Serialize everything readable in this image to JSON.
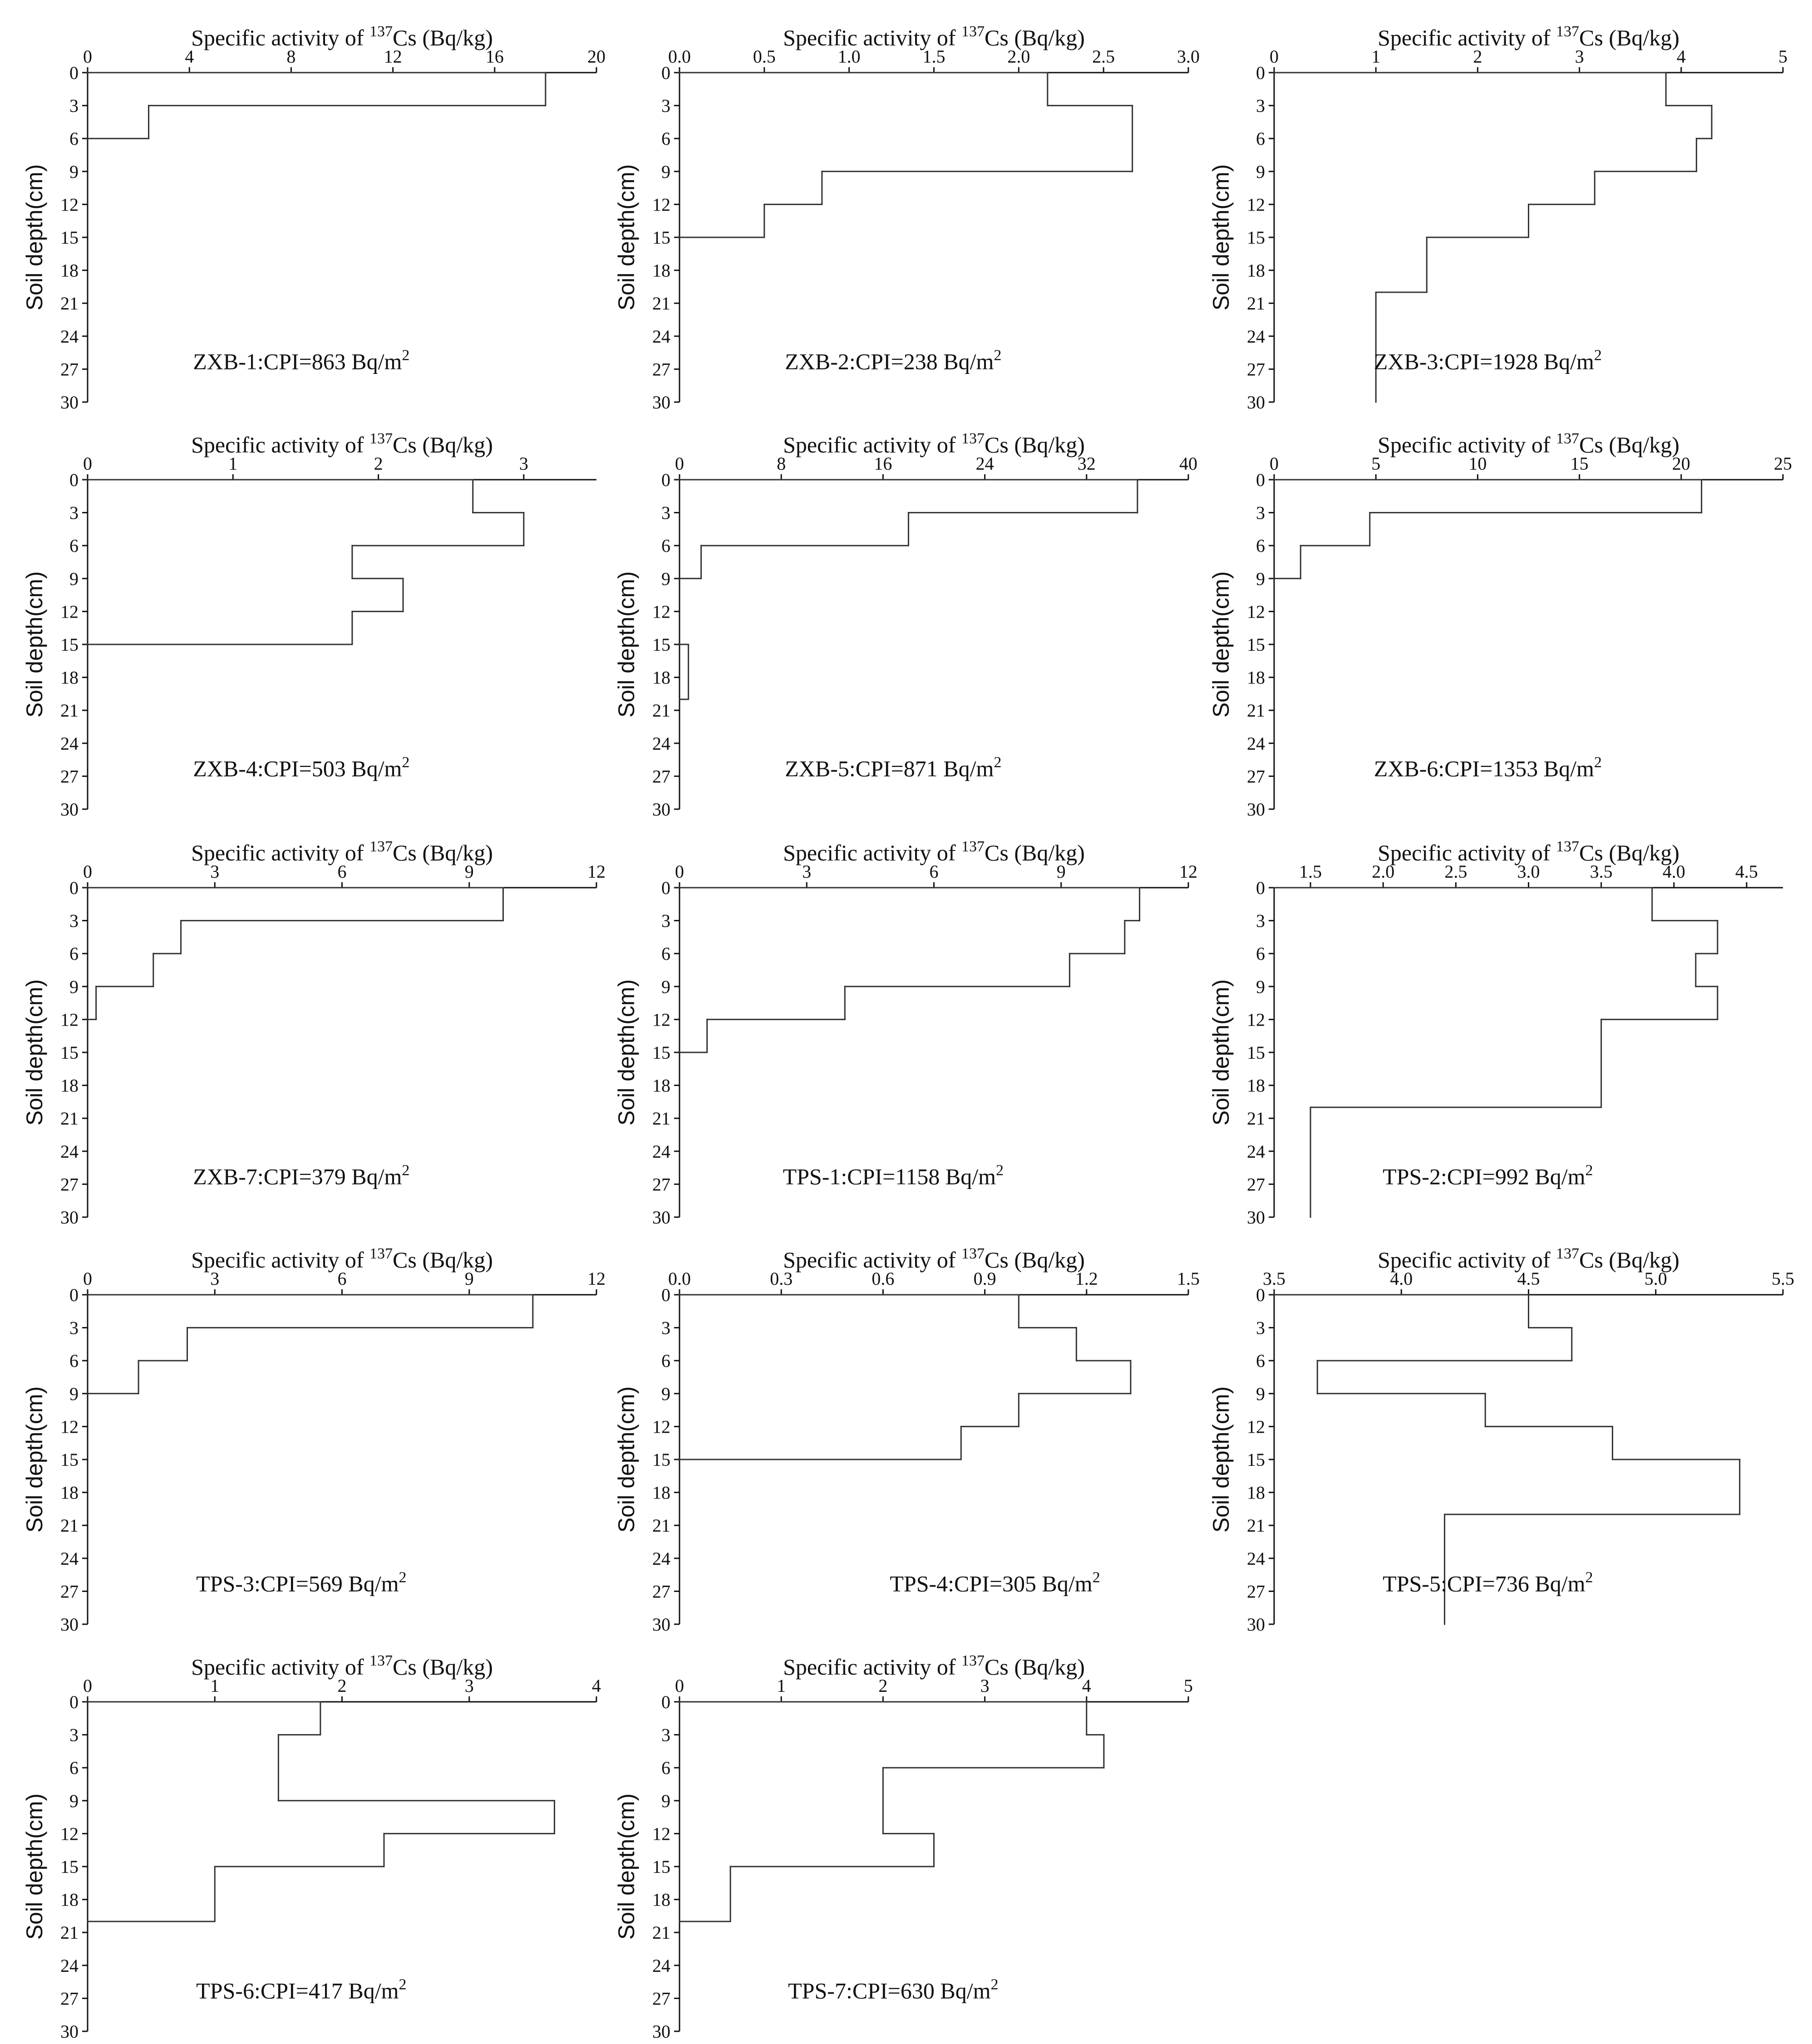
{
  "figure": {
    "x_title_prefix": "Specific activity of ",
    "x_title_isotope_mass": "137",
    "x_title_suffix": "Cs (Bq/kg)",
    "y_title": "Soil depth(cm)",
    "line_color": "#333333"
  },
  "chart_data": [
    {
      "type": "line",
      "profile_id": "ZXB-1",
      "label_prefix": "ZXB-1:CPI=863 Bq/m",
      "label_exponent": "2",
      "xlim": [
        0,
        20
      ],
      "xticks": [
        "0",
        "4",
        "8",
        "12",
        "16",
        "20"
      ],
      "ylim": [
        0,
        30
      ],
      "yticks": [
        "0",
        "3",
        "6",
        "9",
        "12",
        "15",
        "18",
        "21",
        "24",
        "27",
        "30"
      ],
      "depth_intervals": [
        [
          0,
          3
        ],
        [
          3,
          6
        ]
      ],
      "values": [
        18,
        2.4
      ]
    },
    {
      "type": "line",
      "profile_id": "ZXB-2",
      "label_prefix": "ZXB-2:CPI=238 Bq/m",
      "label_exponent": "2",
      "xlim": [
        0,
        3
      ],
      "xticks": [
        "0.0",
        "0.5",
        "1.0",
        "1.5",
        "2.0",
        "2.5",
        "3.0"
      ],
      "ylim": [
        0,
        30
      ],
      "yticks": [
        "0",
        "3",
        "6",
        "9",
        "12",
        "15",
        "18",
        "21",
        "24",
        "27",
        "30"
      ],
      "depth_intervals": [
        [
          0,
          3
        ],
        [
          3,
          9
        ],
        [
          9,
          12
        ],
        [
          12,
          15
        ]
      ],
      "values": [
        2.17,
        2.67,
        0.84,
        0.5
      ]
    },
    {
      "type": "line",
      "profile_id": "ZXB-3",
      "label_prefix": "ZXB-3:CPI=1928 Bq/m",
      "label_exponent": "2",
      "xlim": [
        0,
        5
      ],
      "xticks": [
        "0",
        "1",
        "2",
        "3",
        "4",
        "5"
      ],
      "ylim": [
        0,
        30
      ],
      "yticks": [
        "0",
        "3",
        "6",
        "9",
        "12",
        "15",
        "18",
        "21",
        "24",
        "27",
        "30"
      ],
      "depth_intervals": [
        [
          0,
          3
        ],
        [
          3,
          6
        ],
        [
          6,
          9
        ],
        [
          9,
          12
        ],
        [
          12,
          15
        ],
        [
          15,
          20
        ],
        [
          20,
          30
        ]
      ],
      "values": [
        3.85,
        4.3,
        4.15,
        3.15,
        2.5,
        1.5,
        1.0
      ]
    },
    {
      "type": "line",
      "profile_id": "ZXB-4",
      "label_prefix": "ZXB-4:CPI=503 Bq/m",
      "label_exponent": "2",
      "xlim": [
        0,
        3.5
      ],
      "xticks": [
        "0",
        "1",
        "2",
        "3"
      ],
      "ylim": [
        0,
        30
      ],
      "yticks": [
        "0",
        "3",
        "6",
        "9",
        "12",
        "15",
        "18",
        "21",
        "24",
        "27",
        "30"
      ],
      "depth_intervals": [
        [
          0,
          3
        ],
        [
          3,
          6
        ],
        [
          6,
          9
        ],
        [
          9,
          12
        ],
        [
          12,
          15
        ]
      ],
      "values": [
        2.65,
        3.0,
        1.82,
        2.17,
        1.82
      ]
    },
    {
      "type": "line",
      "profile_id": "ZXB-5",
      "label_prefix": "ZXB-5:CPI=871 Bq/m",
      "label_exponent": "2",
      "xlim": [
        0,
        40
      ],
      "xticks": [
        "0",
        "8",
        "16",
        "24",
        "32",
        "40"
      ],
      "ylim": [
        0,
        30
      ],
      "yticks": [
        "0",
        "3",
        "6",
        "9",
        "12",
        "15",
        "18",
        "21",
        "24",
        "27",
        "30"
      ],
      "depth_intervals": [
        [
          0,
          3
        ],
        [
          3,
          6
        ],
        [
          6,
          9
        ],
        [
          15,
          20
        ]
      ],
      "values": [
        36,
        18,
        1.7,
        0.7
      ]
    },
    {
      "type": "line",
      "profile_id": "ZXB-6",
      "label_prefix": "ZXB-6:CPI=1353 Bq/m",
      "label_exponent": "2",
      "xlim": [
        0,
        25
      ],
      "xticks": [
        "0",
        "5",
        "10",
        "15",
        "20",
        "25"
      ],
      "ylim": [
        0,
        30
      ],
      "yticks": [
        "0",
        "3",
        "6",
        "9",
        "12",
        "15",
        "18",
        "21",
        "24",
        "27",
        "30"
      ],
      "depth_intervals": [
        [
          0,
          3
        ],
        [
          3,
          6
        ],
        [
          6,
          9
        ]
      ],
      "values": [
        21,
        4.7,
        1.3
      ]
    },
    {
      "type": "line",
      "profile_id": "ZXB-7",
      "label_prefix": "ZXB-7:CPI=379 Bq/m",
      "label_exponent": "2",
      "xlim": [
        0,
        12
      ],
      "xticks": [
        "0",
        "3",
        "6",
        "9",
        "12"
      ],
      "ylim": [
        0,
        30
      ],
      "yticks": [
        "0",
        "3",
        "6",
        "9",
        "12",
        "15",
        "18",
        "21",
        "24",
        "27",
        "30"
      ],
      "depth_intervals": [
        [
          0,
          3
        ],
        [
          3,
          6
        ],
        [
          6,
          9
        ],
        [
          9,
          12
        ]
      ],
      "values": [
        9.8,
        2.2,
        1.55,
        0.2
      ]
    },
    {
      "type": "line",
      "profile_id": "TPS-1",
      "label_prefix": "TPS-1:CPI=1158 Bq/m",
      "label_exponent": "2",
      "xlim": [
        0,
        12
      ],
      "xticks": [
        "0",
        "3",
        "6",
        "9",
        "12"
      ],
      "ylim": [
        0,
        30
      ],
      "yticks": [
        "0",
        "3",
        "6",
        "9",
        "12",
        "15",
        "18",
        "21",
        "24",
        "27",
        "30"
      ],
      "depth_intervals": [
        [
          0,
          3
        ],
        [
          3,
          6
        ],
        [
          6,
          9
        ],
        [
          9,
          12
        ],
        [
          12,
          15
        ]
      ],
      "values": [
        10.85,
        10.5,
        9.2,
        3.9,
        0.65
      ]
    },
    {
      "type": "line",
      "profile_id": "TPS-2",
      "label_prefix": "TPS-2:CPI=992 Bq/m",
      "label_exponent": "2",
      "xlim": [
        1.25,
        4.75
      ],
      "xticks": [
        "1.5",
        "2.0",
        "2.5",
        "3.0",
        "3.5",
        "4.0",
        "4.5"
      ],
      "ylim": [
        0,
        30
      ],
      "yticks": [
        "0",
        "3",
        "6",
        "9",
        "12",
        "15",
        "18",
        "21",
        "24",
        "27",
        "30"
      ],
      "depth_intervals": [
        [
          0,
          3
        ],
        [
          3,
          6
        ],
        [
          6,
          9
        ],
        [
          9,
          12
        ],
        [
          12,
          20
        ],
        [
          20,
          30
        ]
      ],
      "values": [
        3.85,
        4.3,
        4.15,
        4.3,
        3.5,
        1.5
      ]
    },
    {
      "type": "line",
      "profile_id": "TPS-3",
      "label_prefix": "TPS-3:CPI=569  Bq/m",
      "label_exponent": "2",
      "xlim": [
        0,
        12
      ],
      "xticks": [
        "0",
        "3",
        "6",
        "9",
        "12"
      ],
      "ylim": [
        0,
        30
      ],
      "yticks": [
        "0",
        "3",
        "6",
        "9",
        "12",
        "15",
        "18",
        "21",
        "24",
        "27",
        "30"
      ],
      "depth_intervals": [
        [
          0,
          3
        ],
        [
          3,
          6
        ],
        [
          6,
          9
        ]
      ],
      "values": [
        10.5,
        2.35,
        1.2
      ]
    },
    {
      "type": "line",
      "profile_id": "TPS-4",
      "label_prefix": "TPS-4:CPI=305 Bq/m",
      "label_exponent": "2",
      "xlim": [
        0,
        1.5
      ],
      "xticks": [
        "0.0",
        "0.3",
        "0.6",
        "0.9",
        "1.2",
        "1.5"
      ],
      "ylim": [
        0,
        30
      ],
      "yticks": [
        "0",
        "3",
        "6",
        "9",
        "12",
        "15",
        "18",
        "21",
        "24",
        "27",
        "30"
      ],
      "depth_intervals": [
        [
          0,
          3
        ],
        [
          3,
          6
        ],
        [
          6,
          9
        ],
        [
          9,
          12
        ],
        [
          12,
          15
        ]
      ],
      "values": [
        1.0,
        1.17,
        1.33,
        1.0,
        0.83
      ]
    },
    {
      "type": "line",
      "profile_id": "TPS-5",
      "label_prefix": "TPS-5:CPI=736 Bq/m",
      "label_exponent": "2",
      "xlim": [
        3.5,
        5.5
      ],
      "xticks": [
        "3.5",
        "4.0",
        "4.5",
        "5.0",
        "5.5"
      ],
      "ylim": [
        0,
        30
      ],
      "yticks": [
        "0",
        "3",
        "6",
        "9",
        "12",
        "15",
        "18",
        "21",
        "24",
        "27",
        "30"
      ],
      "depth_intervals": [
        [
          0,
          3
        ],
        [
          3,
          6
        ],
        [
          6,
          9
        ],
        [
          9,
          12
        ],
        [
          12,
          15
        ],
        [
          15,
          20
        ],
        [
          20,
          30
        ]
      ],
      "values": [
        4.5,
        4.67,
        3.67,
        4.33,
        4.83,
        5.33,
        4.17
      ]
    },
    {
      "type": "line",
      "profile_id": "TPS-6",
      "label_prefix": "TPS-6:CPI=417 Bq/m",
      "label_exponent": "2",
      "xlim": [
        0,
        4
      ],
      "xticks": [
        "0",
        "1",
        "2",
        "3",
        "4"
      ],
      "ylim": [
        0,
        30
      ],
      "yticks": [
        "0",
        "3",
        "6",
        "9",
        "12",
        "15",
        "18",
        "21",
        "24",
        "27",
        "30"
      ],
      "depth_intervals": [
        [
          0,
          3
        ],
        [
          3,
          9
        ],
        [
          9,
          12
        ],
        [
          12,
          15
        ],
        [
          15,
          20
        ]
      ],
      "values": [
        1.83,
        1.5,
        3.67,
        2.33,
        1.0
      ]
    },
    {
      "type": "line",
      "profile_id": "TPS-7",
      "label_prefix": "TPS-7:CPI=630 Bq/m",
      "label_exponent": "2",
      "xlim": [
        0,
        5
      ],
      "xticks": [
        "0",
        "1",
        "2",
        "3",
        "4",
        "5"
      ],
      "ylim": [
        0,
        30
      ],
      "yticks": [
        "0",
        "3",
        "6",
        "9",
        "12",
        "15",
        "18",
        "21",
        "24",
        "27",
        "30"
      ],
      "depth_intervals": [
        [
          0,
          3
        ],
        [
          3,
          6
        ],
        [
          6,
          12
        ],
        [
          12,
          15
        ],
        [
          15,
          20
        ]
      ],
      "values": [
        4.0,
        4.17,
        2.0,
        2.5,
        0.5
      ]
    }
  ]
}
